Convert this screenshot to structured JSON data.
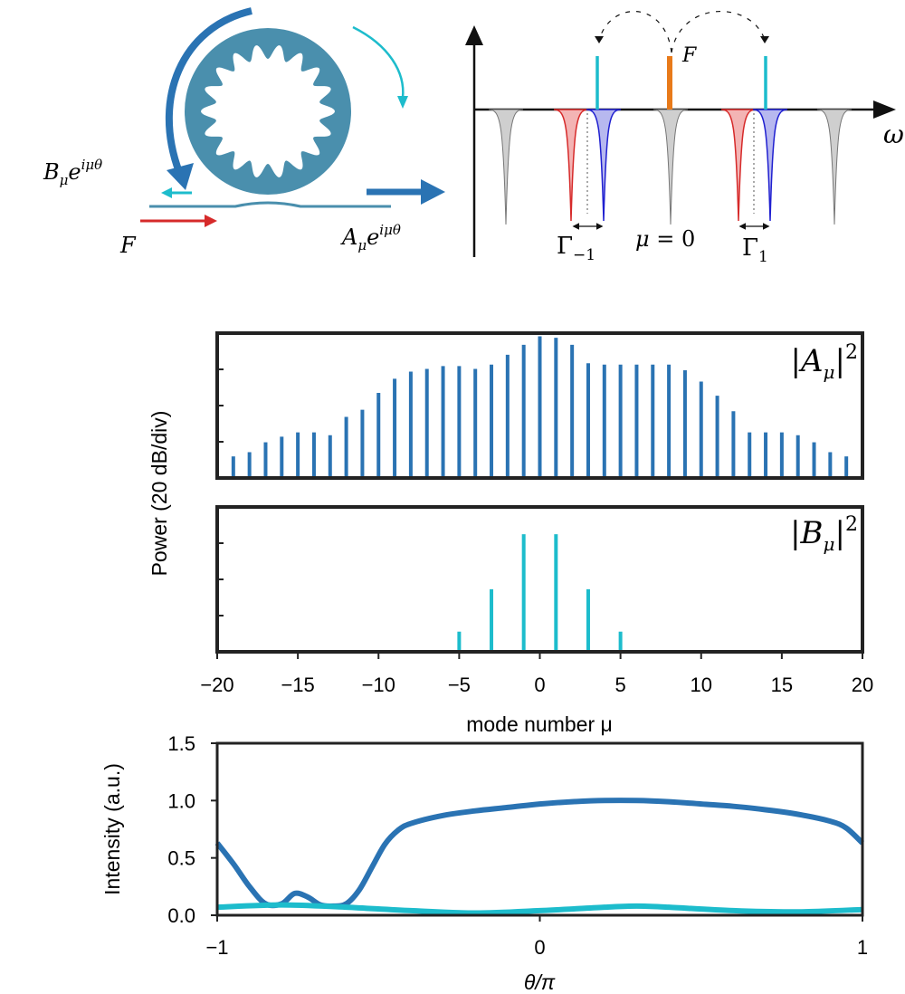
{
  "colors": {
    "A_series": "#2a73b3",
    "B_series": "#1dbccc",
    "ring": "#4a8fad",
    "pump": "#e87a1a",
    "red_drive": "#d62a2a",
    "red_fill": "#f3b4b4",
    "blue_fill": "#b7b8ef",
    "gray_fill": "#cfcfcf",
    "frame": "#222222"
  },
  "schematic": {
    "left_label": "B_μ e^{iμθ}",
    "right_label": "A_μ e^{iμθ}",
    "drive_label": "F",
    "spectrum_pump_label": "F",
    "spectrum_axis_label": "ω",
    "gamma_left": "Γ–1",
    "gamma_right": "Γ1",
    "mu_zero_label": "μ = 0"
  },
  "chart_data": [
    {
      "type": "bar",
      "title": "|Aμ|²",
      "ylabel": "Power (20 dB/div)",
      "xlabel": "mode number μ",
      "x": [
        -19,
        -18,
        -17,
        -16,
        -15,
        -14,
        -13,
        -12,
        -11,
        -10,
        -9,
        -8,
        -7,
        -6,
        -5,
        -4,
        -3,
        -2,
        -1,
        0,
        1,
        2,
        3,
        4,
        5,
        6,
        7,
        8,
        9,
        10,
        11,
        12,
        13,
        14,
        15,
        16,
        17,
        18,
        19
      ],
      "values": [
        0.14,
        0.17,
        0.24,
        0.28,
        0.31,
        0.31,
        0.29,
        0.42,
        0.47,
        0.59,
        0.69,
        0.74,
        0.76,
        0.78,
        0.78,
        0.76,
        0.79,
        0.86,
        0.93,
        0.99,
        0.98,
        0.93,
        0.8,
        0.79,
        0.79,
        0.79,
        0.79,
        0.79,
        0.75,
        0.67,
        0.57,
        0.46,
        0.31,
        0.31,
        0.31,
        0.29,
        0.24,
        0.17,
        0.14
      ],
      "xlim": [
        -20,
        20
      ],
      "ylim": [
        0,
        1
      ],
      "grid": false
    },
    {
      "type": "bar",
      "title": "|Bμ|²",
      "x": [
        -5,
        -3,
        -1,
        1,
        3,
        5
      ],
      "values": [
        0.13,
        0.43,
        0.82,
        0.82,
        0.43,
        0.13
      ],
      "xlim": [
        -20,
        20
      ],
      "ylim": [
        0,
        1
      ],
      "xticks": [
        -20,
        -15,
        -10,
        -5,
        0,
        5,
        10,
        15,
        20
      ],
      "xticklabels": [
        "−20",
        "−15",
        "−10",
        "−5",
        "0",
        "5",
        "10",
        "15",
        "20"
      ],
      "xlabel": "mode number μ",
      "grid": false
    },
    {
      "type": "line",
      "xlabel": "θ/π",
      "ylabel": "Intensity (a.u.)",
      "xlim": [
        -1,
        1
      ],
      "ylim": [
        0,
        1.5
      ],
      "xticks": [
        -1,
        0,
        1
      ],
      "xticklabels": [
        "−1",
        "0",
        "1"
      ],
      "yticks": [
        0.0,
        0.5,
        1.0,
        1.5
      ],
      "yticklabels": [
        "0.0",
        "0.5",
        "1.0",
        "1.5"
      ],
      "grid": false,
      "series": [
        {
          "x": [
            -1,
            -0.95,
            -0.9,
            -0.85,
            -0.8,
            -0.76,
            -0.72,
            -0.68,
            -0.64,
            -0.6,
            -0.56,
            -0.52,
            -0.48,
            -0.44,
            -0.4,
            -0.3,
            -0.2,
            -0.1,
            0,
            0.1,
            0.2,
            0.3,
            0.4,
            0.5,
            0.6,
            0.7,
            0.8,
            0.9,
            0.95,
            1
          ],
          "y": [
            0.63,
            0.45,
            0.25,
            0.1,
            0.1,
            0.19,
            0.16,
            0.09,
            0.08,
            0.1,
            0.22,
            0.42,
            0.62,
            0.74,
            0.8,
            0.87,
            0.91,
            0.94,
            0.97,
            0.99,
            1.0,
            1.0,
            0.99,
            0.97,
            0.95,
            0.92,
            0.88,
            0.82,
            0.76,
            0.63
          ]
        },
        {
          "x": [
            -1,
            -0.8,
            -0.6,
            -0.4,
            -0.2,
            0,
            0.2,
            0.3,
            0.4,
            0.6,
            0.8,
            1
          ],
          "y": [
            0.07,
            0.09,
            0.07,
            0.04,
            0.02,
            0.04,
            0.07,
            0.08,
            0.07,
            0.04,
            0.03,
            0.05
          ]
        }
      ]
    }
  ]
}
